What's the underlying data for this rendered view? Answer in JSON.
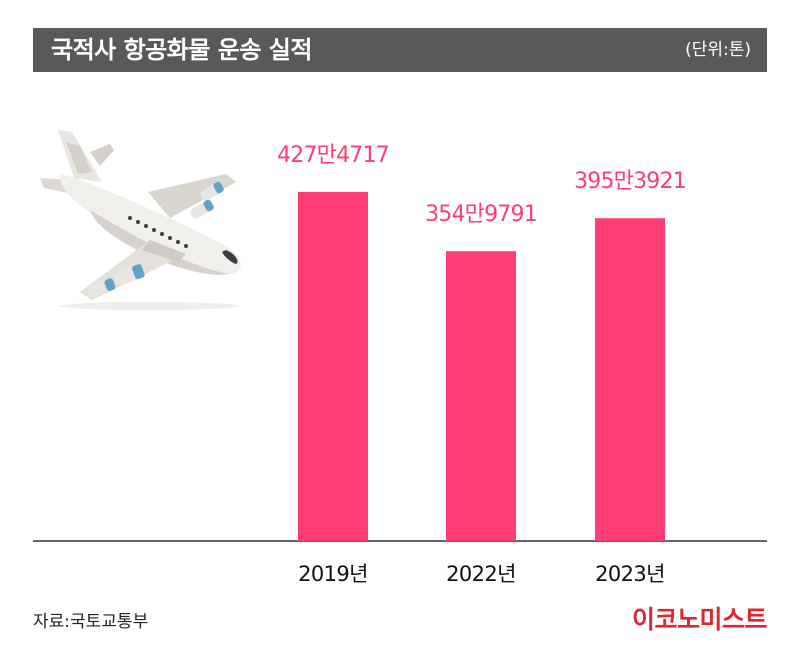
{
  "header": {
    "title": "국적사 항공화물 운송 실적",
    "unit": "(단위:톤)"
  },
  "chart_data": {
    "type": "bar",
    "title": "국적사 항공화물 운송 실적",
    "unit": "(단위:톤)",
    "categories": [
      "2019년",
      "2022년",
      "2023년"
    ],
    "values": [
      4274717,
      3549791,
      3953921
    ],
    "value_labels": [
      "427만4717",
      "354만9791",
      "395만3921"
    ],
    "bar_color": "#ff3d74",
    "label_color": "#ff3d74",
    "grid": false
  },
  "footer": {
    "source": "자료:국토교통부",
    "brand": "이코노미스트",
    "brand_color": "#e0262f"
  }
}
